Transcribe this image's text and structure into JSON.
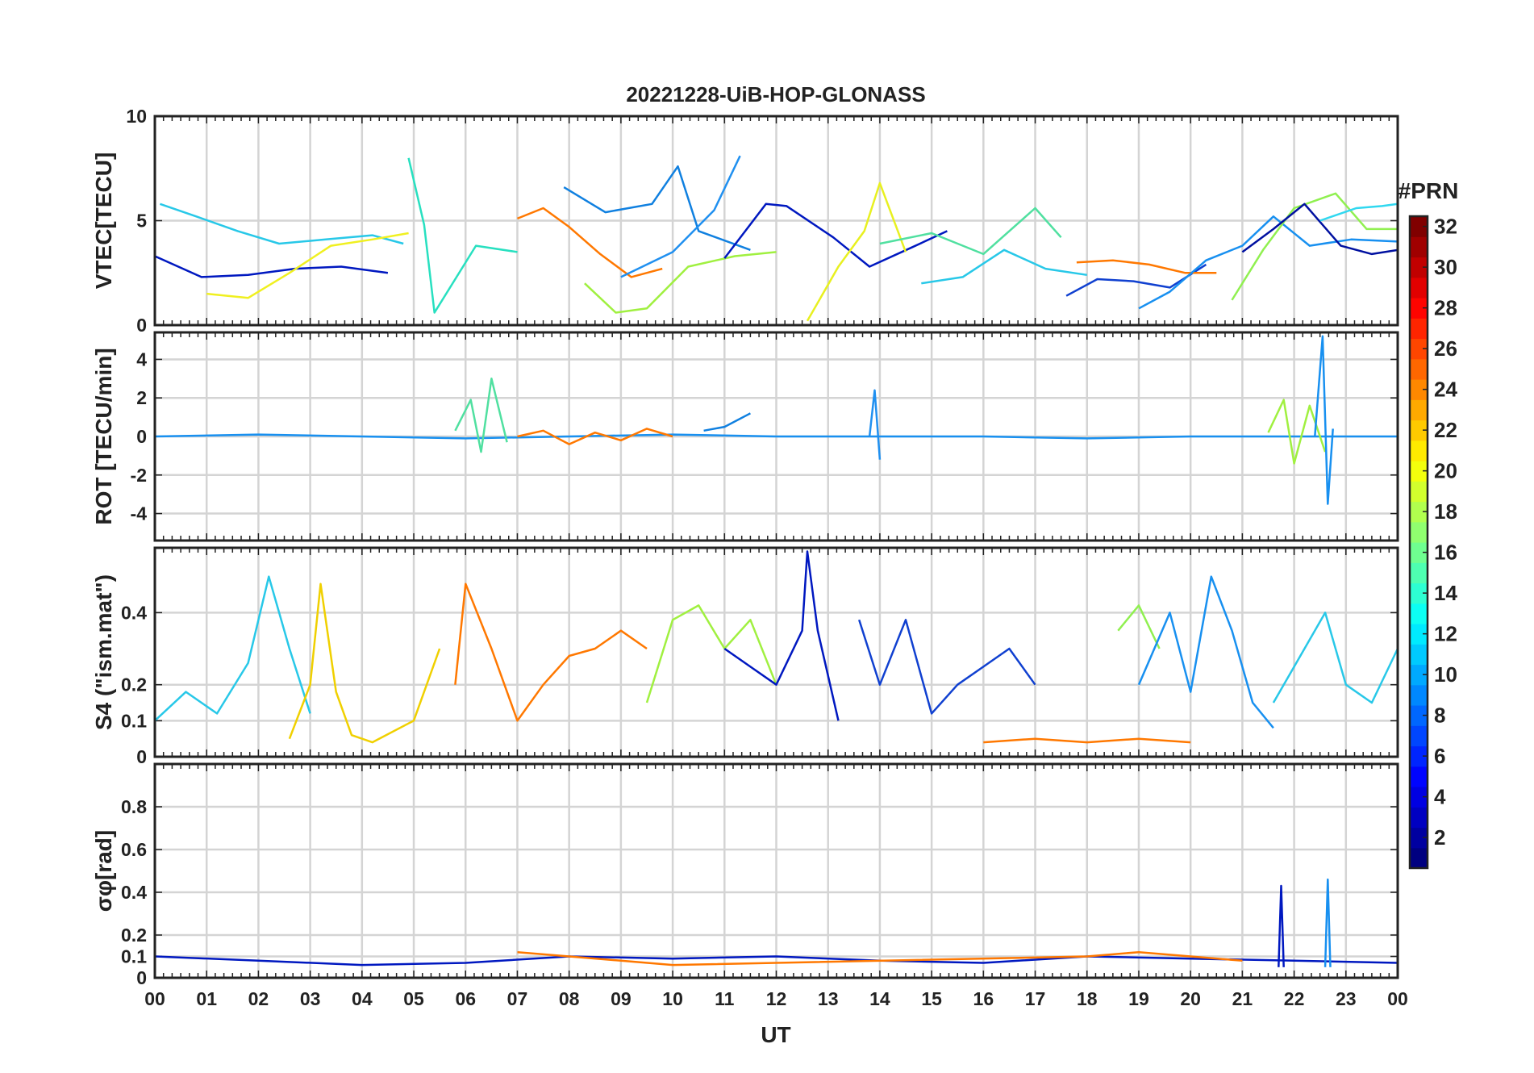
{
  "figure": {
    "title": "20221228-UiB-HOP-GLONASS",
    "xlabel": "UT"
  },
  "chart_data": [
    {
      "type": "line",
      "panel": "vtec",
      "ylabel": "VTEC[TECU]",
      "ylim": [
        0,
        10
      ],
      "yticks": [
        0,
        5,
        10
      ],
      "xlim": [
        0,
        24
      ],
      "grid": true,
      "series": [
        {
          "color": "#28c8e8",
          "x": [
            0.1,
            0.8,
            1.6,
            2.4,
            3.3,
            4.2,
            4.8
          ],
          "y": [
            5.8,
            5.2,
            4.5,
            3.9,
            4.1,
            4.3,
            3.9
          ]
        },
        {
          "color": "#0018c0",
          "x": [
            0.0,
            0.9,
            1.8,
            2.7,
            3.6,
            4.5
          ],
          "y": [
            3.3,
            2.3,
            2.4,
            2.7,
            2.8,
            2.5
          ]
        },
        {
          "color": "#f0f020",
          "x": [
            1.0,
            1.8,
            2.6,
            3.4,
            4.2,
            4.9
          ],
          "y": [
            1.5,
            1.3,
            2.5,
            3.8,
            4.1,
            4.4
          ]
        },
        {
          "color": "#28e0c0",
          "x": [
            4.9,
            5.2,
            5.4,
            6.2,
            7.0
          ],
          "y": [
            8.0,
            4.8,
            0.6,
            3.8,
            3.5
          ]
        },
        {
          "color": "#ff7800",
          "x": [
            7.0,
            7.5,
            8.0,
            8.6,
            9.2,
            9.8
          ],
          "y": [
            5.1,
            5.6,
            4.7,
            3.4,
            2.3,
            2.7
          ]
        },
        {
          "color": "#1080e0",
          "x": [
            7.9,
            8.7,
            9.6,
            10.1,
            10.5,
            11.5
          ],
          "y": [
            6.6,
            5.4,
            5.8,
            7.6,
            4.5,
            3.6
          ]
        },
        {
          "color": "#2090f0",
          "x": [
            9.0,
            10.0,
            10.8,
            11.3
          ],
          "y": [
            2.3,
            3.5,
            5.5,
            8.1
          ]
        },
        {
          "color": "#a0f040",
          "x": [
            8.3,
            8.9,
            9.5,
            10.3,
            11.2,
            12.0
          ],
          "y": [
            2.0,
            0.6,
            0.8,
            2.8,
            3.3,
            3.5
          ]
        },
        {
          "color": "#0018c0",
          "x": [
            11.0,
            11.8,
            12.2,
            13.1,
            13.8,
            14.6,
            15.3
          ],
          "y": [
            3.2,
            5.8,
            5.7,
            4.2,
            2.8,
            3.7,
            4.5
          ]
        },
        {
          "color": "#e8f020",
          "x": [
            12.6,
            13.2,
            13.7,
            14.0,
            14.5
          ],
          "y": [
            0.2,
            2.8,
            4.5,
            6.8,
            3.5
          ]
        },
        {
          "color": "#50e0a0",
          "x": [
            14.0,
            15.0,
            16.0,
            17.0,
            17.5
          ],
          "y": [
            3.9,
            4.4,
            3.4,
            5.6,
            4.2
          ]
        },
        {
          "color": "#28c8e8",
          "x": [
            14.8,
            15.6,
            16.4,
            17.2,
            18.0
          ],
          "y": [
            2.0,
            2.3,
            3.6,
            2.7,
            2.4
          ]
        },
        {
          "color": "#1040d0",
          "x": [
            17.6,
            18.2,
            18.9,
            19.6,
            20.3
          ],
          "y": [
            1.4,
            2.2,
            2.1,
            1.8,
            2.9
          ]
        },
        {
          "color": "#ff7800",
          "x": [
            17.8,
            18.5,
            19.2,
            19.9,
            20.5
          ],
          "y": [
            3.0,
            3.1,
            2.9,
            2.5,
            2.5
          ]
        },
        {
          "color": "#1890f0",
          "x": [
            19.0,
            19.6,
            20.3,
            21.0,
            21.6,
            22.3,
            23.1,
            24.0
          ],
          "y": [
            0.8,
            1.6,
            3.1,
            3.8,
            5.2,
            3.8,
            4.1,
            4.0
          ]
        },
        {
          "color": "#90f050",
          "x": [
            20.8,
            21.4,
            22.0,
            22.8,
            23.4,
            24.0
          ],
          "y": [
            1.2,
            3.6,
            5.6,
            6.3,
            4.6,
            4.6
          ]
        },
        {
          "color": "#0010a0",
          "x": [
            21.0,
            21.6,
            22.2,
            22.9,
            23.5,
            24.0
          ],
          "y": [
            3.5,
            4.6,
            5.8,
            3.8,
            3.4,
            3.6
          ]
        },
        {
          "color": "#30d8f0",
          "x": [
            22.5,
            23.2,
            23.7,
            24.0
          ],
          "y": [
            5.0,
            5.6,
            5.7,
            5.8
          ]
        }
      ]
    },
    {
      "type": "line",
      "panel": "rot",
      "ylabel": "ROT [TECU/min]",
      "ylim": [
        -5.4,
        5.4
      ],
      "yticks": [
        -4,
        -2,
        0,
        2,
        4
      ],
      "xlim": [
        0,
        24
      ],
      "grid": true,
      "series": [
        {
          "color": "#1890f0",
          "x": [
            0,
            2,
            4,
            6,
            8,
            10,
            12,
            14,
            16,
            18,
            20,
            22,
            24
          ],
          "y": [
            0.0,
            0.1,
            0.0,
            -0.1,
            0.0,
            0.1,
            0.0,
            0.0,
            0.0,
            -0.1,
            0.0,
            0.0,
            0.0
          ]
        },
        {
          "color": "#ff7800",
          "x": [
            7.0,
            7.5,
            8.0,
            8.5,
            9.0,
            9.5,
            10.0
          ],
          "y": [
            0.0,
            0.3,
            -0.4,
            0.2,
            -0.2,
            0.4,
            0.0
          ]
        },
        {
          "color": "#50e0a0",
          "x": [
            5.8,
            6.1,
            6.3,
            6.5,
            6.8
          ],
          "y": [
            0.3,
            1.9,
            -0.8,
            3.0,
            -0.3
          ]
        },
        {
          "color": "#1080e0",
          "x": [
            10.6,
            11.0,
            11.5
          ],
          "y": [
            0.3,
            0.5,
            1.2
          ]
        },
        {
          "color": "#2090f0",
          "x": [
            13.8,
            13.9,
            14.0
          ],
          "y": [
            0.0,
            2.4,
            -1.2
          ]
        },
        {
          "color": "#a0f040",
          "x": [
            21.5,
            21.8,
            22.0,
            22.3,
            22.6
          ],
          "y": [
            0.2,
            1.9,
            -1.4,
            1.6,
            -0.8
          ]
        },
        {
          "color": "#1890f0",
          "x": [
            22.4,
            22.55,
            22.65,
            22.75
          ],
          "y": [
            0.0,
            5.2,
            -3.5,
            0.4
          ]
        }
      ]
    },
    {
      "type": "line",
      "panel": "s4",
      "ylabel": "S4 (\"ism.mat\")",
      "ylim": [
        0,
        0.58
      ],
      "yticks": [
        0,
        0.1,
        0.2,
        0.4
      ],
      "xlim": [
        0,
        24
      ],
      "grid": true,
      "series": [
        {
          "color": "#28c8e8",
          "x": [
            0.0,
            0.6,
            1.2,
            1.8,
            2.2,
            2.6,
            3.0
          ],
          "y": [
            0.1,
            0.18,
            0.12,
            0.26,
            0.5,
            0.3,
            0.12
          ]
        },
        {
          "color": "#f0d000",
          "x": [
            2.6,
            3.0,
            3.2,
            3.5,
            3.8,
            4.2,
            5.0,
            5.5
          ],
          "y": [
            0.05,
            0.2,
            0.48,
            0.18,
            0.06,
            0.04,
            0.1,
            0.3
          ]
        },
        {
          "color": "#ff7800",
          "x": [
            5.8,
            6.0,
            6.5,
            7.0,
            7.5,
            8.0,
            8.5,
            9.0,
            9.5
          ],
          "y": [
            0.2,
            0.48,
            0.3,
            0.1,
            0.2,
            0.28,
            0.3,
            0.35,
            0.3
          ]
        },
        {
          "color": "#a0f040",
          "x": [
            9.5,
            10.0,
            10.5,
            11.0,
            11.5,
            12.0
          ],
          "y": [
            0.15,
            0.38,
            0.42,
            0.3,
            0.38,
            0.2
          ]
        },
        {
          "color": "#0018c0",
          "x": [
            11.0,
            11.5,
            12.0,
            12.5,
            12.6,
            12.8,
            13.2
          ],
          "y": [
            0.3,
            0.25,
            0.2,
            0.35,
            0.57,
            0.35,
            0.1
          ]
        },
        {
          "color": "#1040d0",
          "x": [
            13.6,
            14.0,
            14.5,
            15.0,
            15.5,
            16.0,
            16.5,
            17.0
          ],
          "y": [
            0.38,
            0.2,
            0.38,
            0.12,
            0.2,
            0.25,
            0.3,
            0.2
          ]
        },
        {
          "color": "#90f050",
          "x": [
            18.6,
            19.0,
            19.4
          ],
          "y": [
            0.35,
            0.42,
            0.3
          ]
        },
        {
          "color": "#1890f0",
          "x": [
            19.0,
            19.6,
            20.0,
            20.4,
            20.8,
            21.2,
            21.6
          ],
          "y": [
            0.2,
            0.4,
            0.18,
            0.5,
            0.35,
            0.15,
            0.08
          ]
        },
        {
          "color": "#28c8e8",
          "x": [
            21.6,
            22.0,
            22.6,
            23.0,
            23.5,
            24.0
          ],
          "y": [
            0.15,
            0.25,
            0.4,
            0.2,
            0.15,
            0.3
          ]
        },
        {
          "color": "#ff7800",
          "x": [
            16.0,
            17.0,
            18.0,
            19.0,
            20.0
          ],
          "y": [
            0.04,
            0.05,
            0.04,
            0.05,
            0.04
          ]
        }
      ]
    },
    {
      "type": "line",
      "panel": "sigma-phi",
      "ylabel": "σφ[rad]",
      "ylim": [
        0,
        1.0
      ],
      "yticks": [
        0,
        0.1,
        0.2,
        0.4,
        0.6,
        0.8
      ],
      "xlim": [
        0,
        24
      ],
      "grid": true,
      "series": [
        {
          "color": "#0018c0",
          "x": [
            0,
            2,
            4,
            6,
            8,
            10,
            12,
            14,
            16,
            18,
            20,
            22,
            24
          ],
          "y": [
            0.1,
            0.08,
            0.06,
            0.07,
            0.1,
            0.09,
            0.1,
            0.08,
            0.07,
            0.1,
            0.09,
            0.08,
            0.07
          ]
        },
        {
          "color": "#ff7800",
          "x": [
            7,
            8,
            9,
            10,
            18,
            19,
            20,
            21
          ],
          "y": [
            0.12,
            0.1,
            0.08,
            0.06,
            0.1,
            0.12,
            0.1,
            0.08
          ]
        },
        {
          "color": "#0018c0",
          "x": [
            21.7,
            21.75,
            21.8
          ],
          "y": [
            0.05,
            0.43,
            0.05
          ]
        },
        {
          "color": "#1890f0",
          "x": [
            22.6,
            22.65,
            22.7
          ],
          "y": [
            0.05,
            0.46,
            0.05
          ]
        }
      ]
    }
  ],
  "colorbar": {
    "label": "#PRN",
    "ticks": [
      2,
      4,
      6,
      8,
      10,
      12,
      14,
      16,
      18,
      20,
      22,
      24,
      26,
      28,
      30,
      32
    ],
    "range": [
      1,
      32
    ],
    "colormap": "jet"
  },
  "xaxis": {
    "tick_labels": [
      "00",
      "01",
      "02",
      "03",
      "04",
      "05",
      "06",
      "07",
      "08",
      "09",
      "10",
      "11",
      "12",
      "13",
      "14",
      "15",
      "16",
      "17",
      "18",
      "19",
      "20",
      "21",
      "22",
      "23",
      "00"
    ]
  }
}
